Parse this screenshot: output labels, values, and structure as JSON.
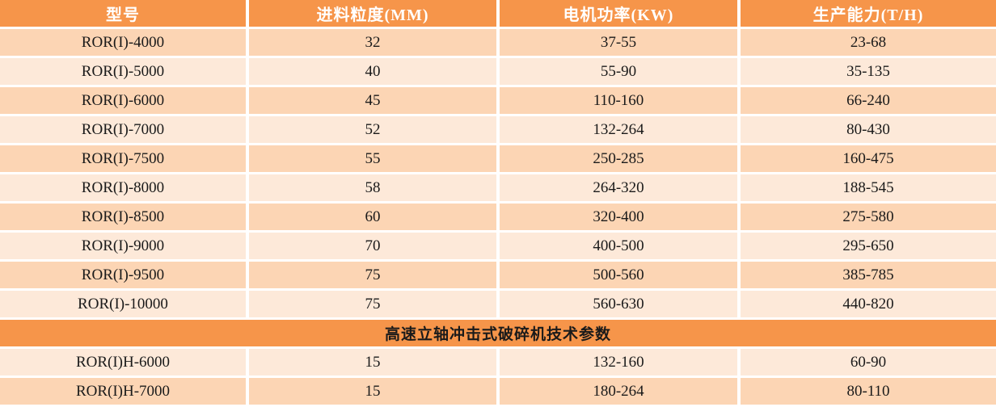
{
  "table": {
    "columns": [
      {
        "key": "model",
        "label": "型号"
      },
      {
        "key": "feed_size",
        "label": "进料粒度(MM)"
      },
      {
        "key": "motor_power",
        "label": "电机功率(KW)"
      },
      {
        "key": "capacity",
        "label": "生产能力(T/H)"
      }
    ],
    "rows": [
      [
        "ROR(I)-4000",
        "32",
        "37-55",
        "23-68"
      ],
      [
        "ROR(I)-5000",
        "40",
        "55-90",
        "35-135"
      ],
      [
        "ROR(I)-6000",
        "45",
        "110-160",
        "66-240"
      ],
      [
        "ROR(I)-7000",
        "52",
        "132-264",
        "80-430"
      ],
      [
        "ROR(I)-7500",
        "55",
        "250-285",
        "160-475"
      ],
      [
        "ROR(I)-8000",
        "58",
        "264-320",
        "188-545"
      ],
      [
        "ROR(I)-8500",
        "60",
        "320-400",
        "275-580"
      ],
      [
        "ROR(I)-9000",
        "70",
        "400-500",
        "295-650"
      ],
      [
        "ROR(I)-9500",
        "75",
        "500-560",
        "385-785"
      ],
      [
        "ROR(I)-10000",
        "75",
        "560-630",
        "440-820"
      ]
    ],
    "section_header": "高速立轴冲击式破碎机技术参数",
    "section_rows": [
      [
        "ROR(I)H-6000",
        "15",
        "132-160",
        "60-90"
      ],
      [
        "ROR(I)H-7000",
        "15",
        "180-264",
        "80-110"
      ]
    ]
  },
  "colors": {
    "header_bg": "#F6954A",
    "band_dark_bg": "#FCD5B4",
    "band_light_bg": "#FDE9D9",
    "header_text": "#FFFFFF",
    "body_text": "#1A1A1A",
    "grid_line": "#FFFFFF"
  }
}
